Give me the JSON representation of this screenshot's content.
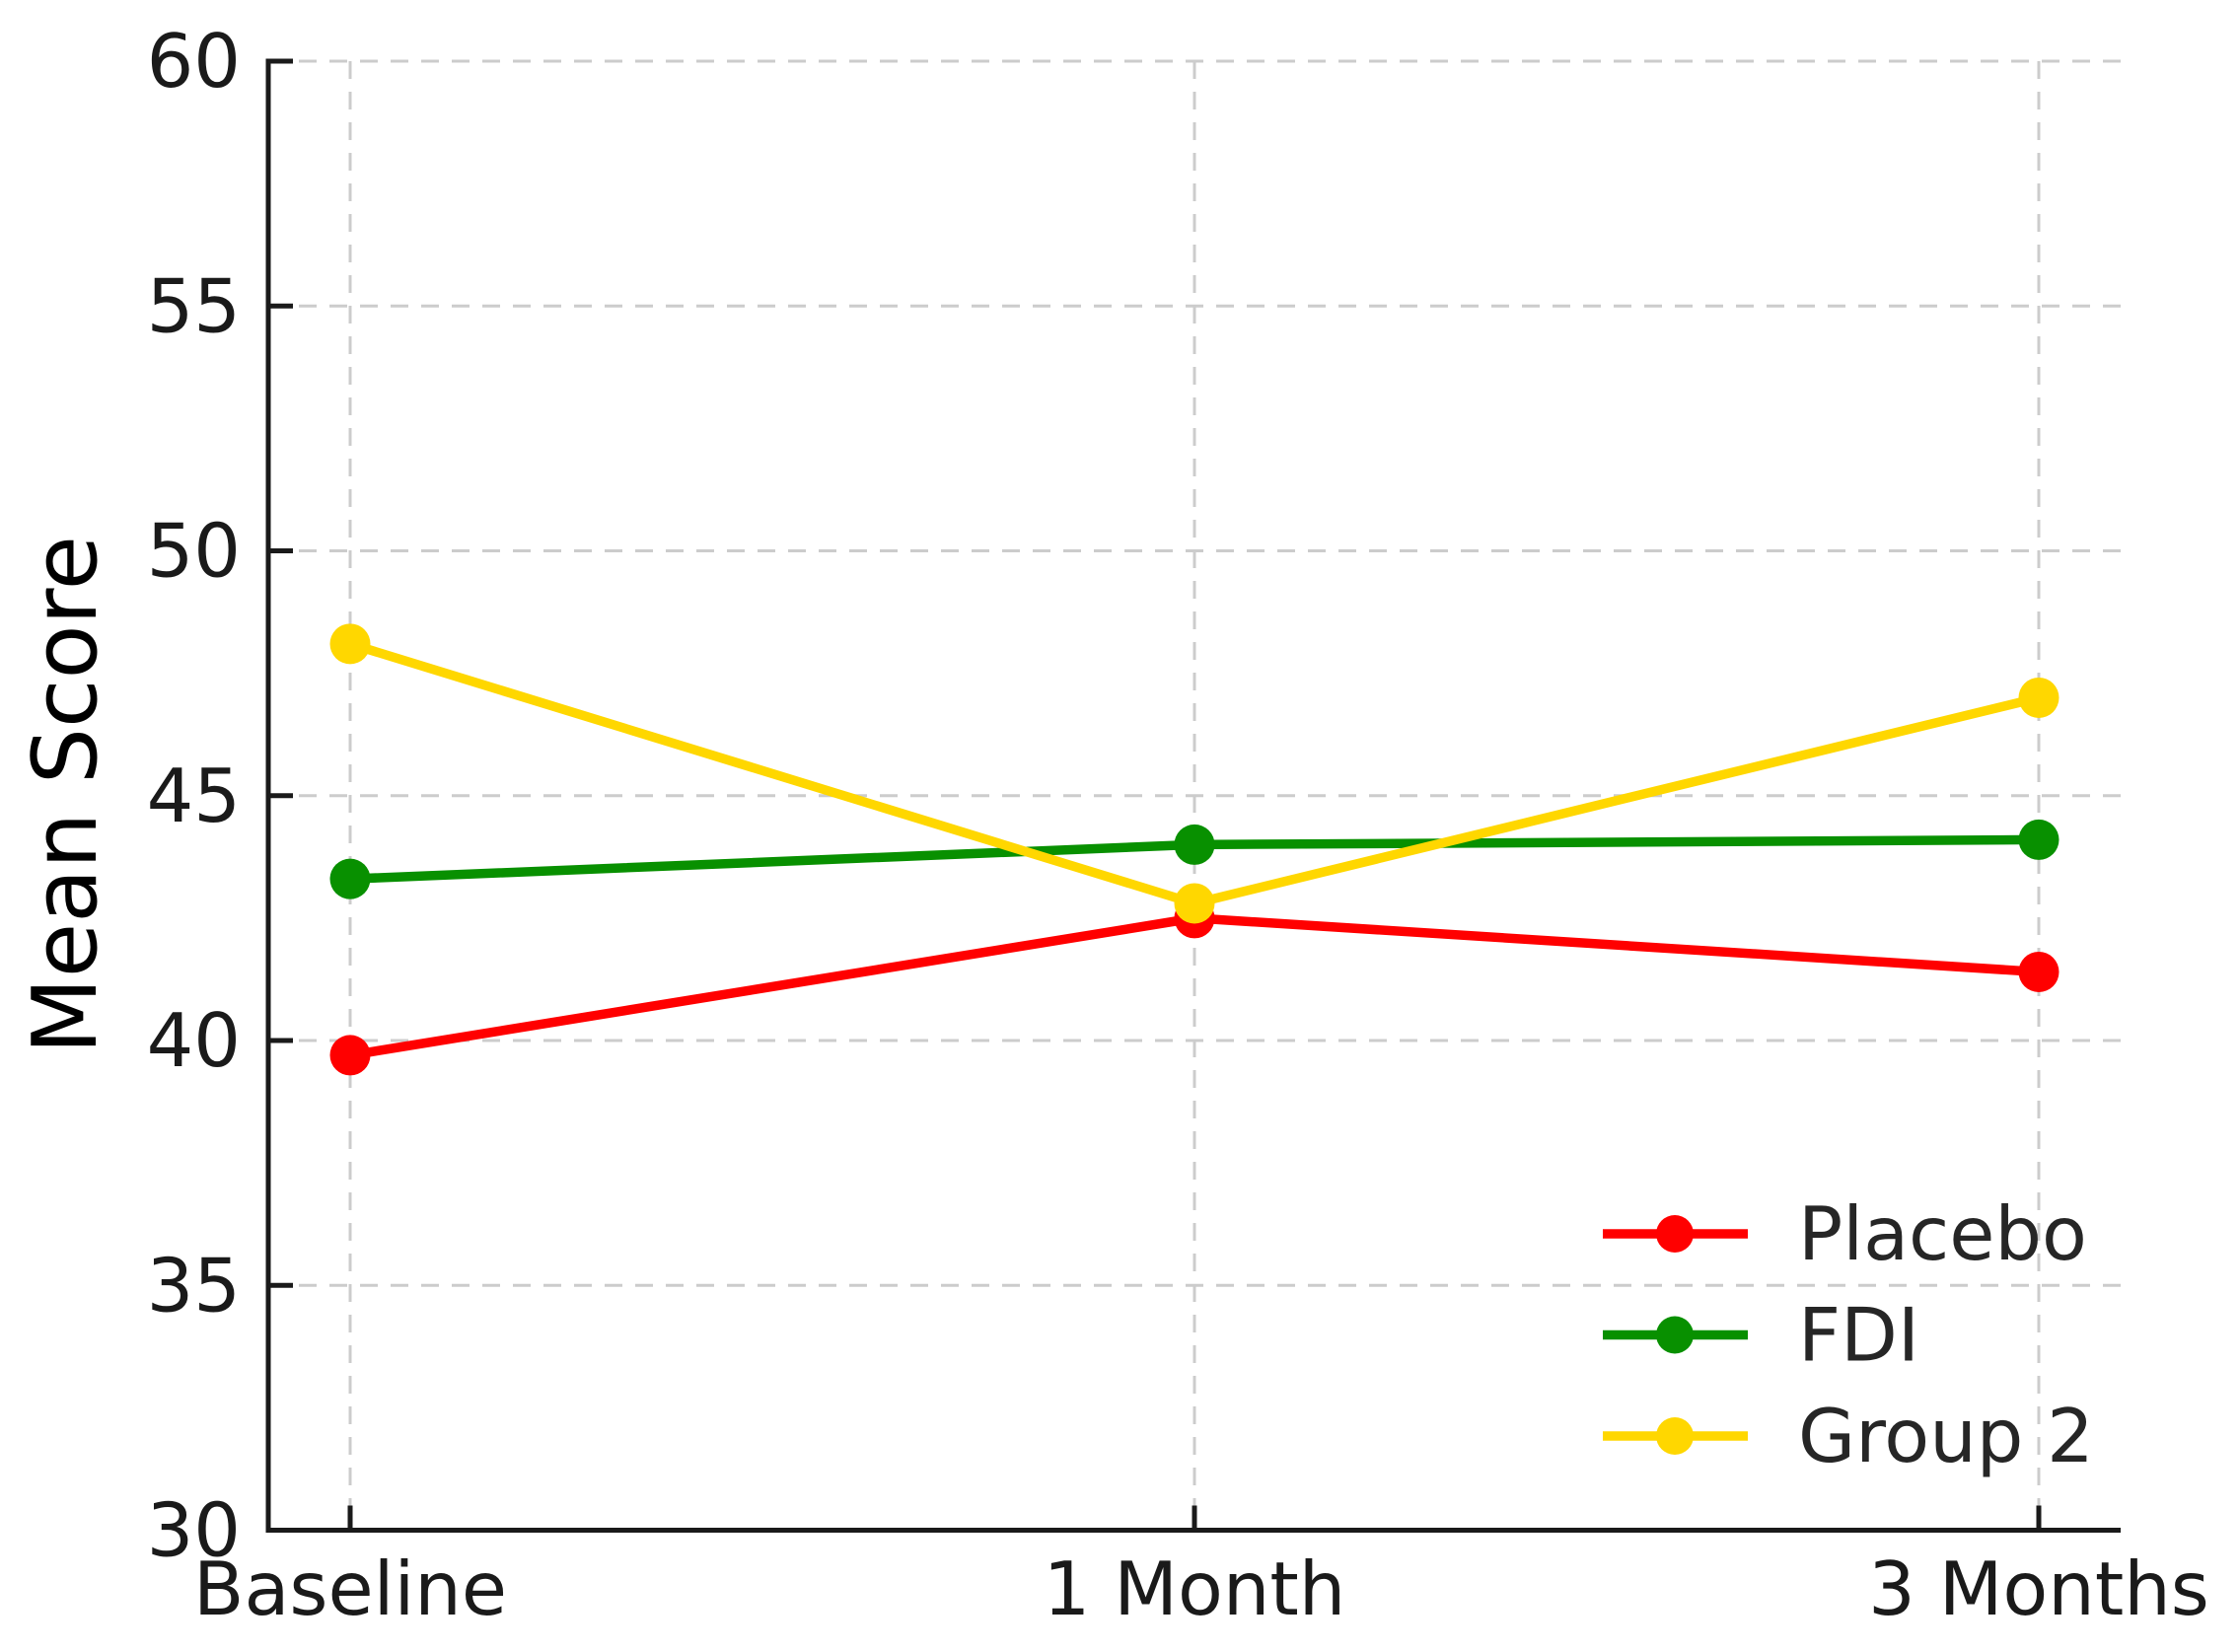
{
  "figure": {
    "background": "#ffffff"
  },
  "chart_data": {
    "type": "line",
    "title": "",
    "xlabel": "",
    "ylabel": "Mean Score",
    "categories": [
      "Baseline",
      "1 Month",
      "3 Months"
    ],
    "series": [
      {
        "name": "Placebo",
        "color": "#ff0000",
        "values": [
          39.7,
          42.5,
          41.4
        ]
      },
      {
        "name": "FDI",
        "color": "#089000",
        "values": [
          43.3,
          44.0,
          44.1
        ]
      },
      {
        "name": "Group 2",
        "color": "#ffd700",
        "values": [
          48.1,
          42.8,
          47.0
        ]
      }
    ],
    "ylim": [
      30,
      60
    ],
    "yticks": [
      60,
      55,
      50,
      45,
      40,
      35,
      30
    ],
    "grid": "dashed, both axes",
    "legend_position": "lower right",
    "marker": "circle",
    "spines": "left and bottom only, ticks pointing inward"
  },
  "style": {
    "axis_color": "#1a1a1a",
    "grid_color": "#cccccc",
    "tick_label_color": "#1a1a1a",
    "legend_text_color": "#262626"
  }
}
